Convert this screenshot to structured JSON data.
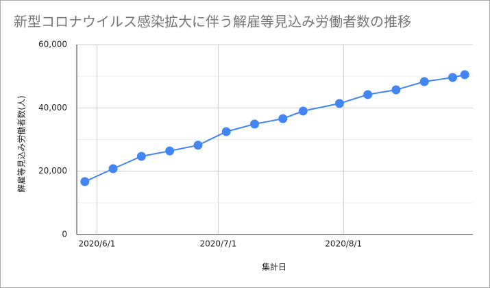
{
  "chart_data": {
    "type": "line",
    "title": "新型コロナウイルス感染拡大に伴う解雇等見込み労働者数の推移",
    "x_label": "集計日",
    "y_label": "解雇等見込み労働者数(人)",
    "x": [
      "2020/5/29",
      "2020/6/5",
      "2020/6/12",
      "2020/6/19",
      "2020/6/26",
      "2020/7/3",
      "2020/7/10",
      "2020/7/17",
      "2020/7/22",
      "2020/7/31",
      "2020/8/7",
      "2020/8/14",
      "2020/8/21",
      "2020/8/28",
      "2020/8/31"
    ],
    "series": [
      {
        "name": "解雇等見込み労働者数",
        "color": "#4285f4",
        "values": [
          16700,
          20800,
          24700,
          26400,
          28200,
          32500,
          34900,
          36600,
          39000,
          41400,
          44200,
          45700,
          48300,
          49600,
          50500
        ]
      }
    ],
    "xlim": [
      "2020/5/27",
      "2020/9/2"
    ],
    "xticks": [
      "2020/6/1",
      "2020/7/1",
      "2020/8/1"
    ],
    "ylim": [
      0,
      60000
    ],
    "yticks": [
      {
        "value": 0,
        "label": "0"
      },
      {
        "value": 20000,
        "label": "20,000"
      },
      {
        "value": 40000,
        "label": "40,000"
      },
      {
        "value": 60000,
        "label": "60,000"
      }
    ],
    "minor_yticks": [
      10000,
      30000,
      50000
    ],
    "grid": true
  }
}
